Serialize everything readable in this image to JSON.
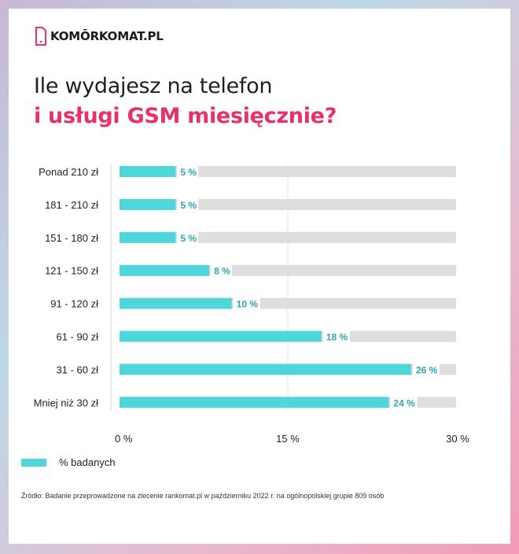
{
  "logo": {
    "text": "KOMŌRKOMAT.PL",
    "icon": "phone-outline-icon",
    "accent": "#e8306c"
  },
  "title": {
    "line1": "Ile wydajesz na telefon",
    "line2": "i usługi GSM miesięcznie?"
  },
  "chart_data": {
    "type": "bar",
    "orientation": "horizontal",
    "categories": [
      "Ponad 210 zł",
      "181 - 210 zł",
      "151 - 180 zł",
      "121 - 150 zł",
      "91 - 120 zł",
      "61 - 90 zł",
      "31 - 60 zł",
      "Mniej niż 30 zł"
    ],
    "series": [
      {
        "name": "% badanych",
        "values": [
          5,
          5,
          5,
          8,
          10,
          18,
          26,
          24
        ],
        "color": "#4fd6da"
      }
    ],
    "data_labels": [
      "5 %",
      "5 %",
      "5 %",
      "8 %",
      "10 %",
      "18 %",
      "26 %",
      "24 %"
    ],
    "xlim": [
      0,
      30
    ],
    "xticks": [
      0,
      15,
      30
    ],
    "xtick_labels": [
      "0 %",
      "15 %",
      "30 %"
    ],
    "track_color": "#dedede",
    "label_color": "#2aa9ae",
    "grid": true,
    "legend_position": "bottom-left"
  },
  "legend": {
    "label": "% badanych"
  },
  "source": "Źródło: Badanie przeprowadzone na zlecenie rankomat.pl w październiku 2022 r. na ogólnopolskiej grupie 809 osób"
}
